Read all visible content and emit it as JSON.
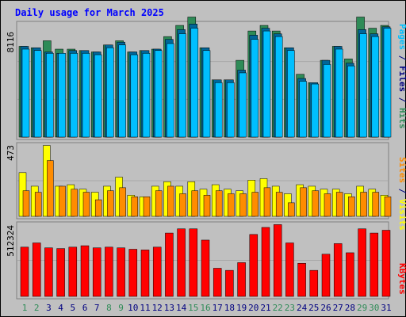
{
  "chart_data": {
    "type": "bar",
    "title": "Daily usage for March 2025",
    "days": [
      "1",
      "2",
      "3",
      "4",
      "5",
      "6",
      "7",
      "8",
      "9",
      "10",
      "11",
      "12",
      "13",
      "14",
      "15",
      "16",
      "17",
      "18",
      "19",
      "20",
      "21",
      "22",
      "23",
      "24",
      "25",
      "26",
      "27",
      "28",
      "29",
      "30",
      "31"
    ],
    "weekend_days": [
      "1",
      "2",
      "8",
      "9",
      "15",
      "16",
      "22",
      "23",
      "29",
      "30"
    ],
    "colors": {
      "title": "#0000ff",
      "background": "#c0c0c0",
      "pages": "#2e8b57",
      "files": "#00bfff",
      "hits": "#006699",
      "visits": "#ffff00",
      "sites": "#ff8c00",
      "kbytes": "#ff0000",
      "weekday_label": "#000080",
      "weekend_label": "#2e8b57"
    },
    "panel_top": {
      "ymax_label": "8116",
      "ymax": 8116,
      "legend": [
        {
          "text": "Pages",
          "color": "#00bfff"
        },
        {
          "text": " / ",
          "color": "#000080"
        },
        {
          "text": "Files",
          "color": "#000080"
        },
        {
          "text": " / ",
          "color": "#000080"
        },
        {
          "text": "Hits",
          "color": "#2e8b57"
        }
      ],
      "series": [
        {
          "name": "Hits",
          "values": [
            6500,
            6400,
            6900,
            6300,
            6300,
            6200,
            6100,
            6600,
            6900,
            6100,
            6200,
            6300,
            7200,
            8000,
            8600,
            6400,
            4100,
            4100,
            5500,
            7600,
            8000,
            7600,
            6400,
            4500,
            3900,
            5500,
            6500,
            5600,
            8600,
            7800,
            8000
          ]
        },
        {
          "name": "Files",
          "values": [
            6500,
            6400,
            6100,
            6000,
            6200,
            6200,
            6100,
            6600,
            6800,
            6100,
            6200,
            6300,
            7000,
            7700,
            8100,
            6400,
            4100,
            4100,
            4800,
            7300,
            7800,
            7400,
            6400,
            4200,
            3900,
            5500,
            6500,
            5300,
            7700,
            7400,
            7900
          ]
        },
        {
          "name": "Pages",
          "values": [
            6300,
            6200,
            6000,
            6000,
            6000,
            6000,
            5900,
            6400,
            6600,
            5900,
            6000,
            6200,
            6700,
            7400,
            7800,
            6200,
            3900,
            3900,
            4600,
            7000,
            7600,
            7200,
            6200,
            4000,
            3800,
            5200,
            6300,
            5100,
            7400,
            7200,
            7800
          ]
        }
      ]
    },
    "panel_mid": {
      "ymax_label": "473",
      "ymax": 473,
      "legend": [
        {
          "text": "Sites",
          "color": "#ff8c00"
        },
        {
          "text": " / ",
          "color": "#000080"
        },
        {
          "text": "Visits",
          "color": "#ffff00"
        }
      ],
      "series": [
        {
          "name": "Visits",
          "values": [
            290,
            200,
            470,
            200,
            210,
            180,
            160,
            200,
            260,
            140,
            130,
            200,
            230,
            200,
            230,
            180,
            210,
            180,
            170,
            240,
            250,
            200,
            150,
            210,
            200,
            180,
            180,
            150,
            200,
            180,
            140
          ]
        },
        {
          "name": "Sites",
          "values": [
            170,
            160,
            370,
            200,
            180,
            160,
            110,
            170,
            190,
            130,
            130,
            170,
            200,
            150,
            170,
            140,
            170,
            150,
            150,
            160,
            190,
            160,
            90,
            190,
            170,
            150,
            160,
            130,
            160,
            160,
            130
          ]
        }
      ]
    },
    "panel_bot": {
      "ymax_label": "512324",
      "ymax": 512324,
      "legend": [
        {
          "text": "KBytes",
          "color": "#ff0000"
        }
      ],
      "series": [
        {
          "name": "KBytes",
          "values": [
            350000,
            380000,
            345000,
            340000,
            350000,
            360000,
            345000,
            350000,
            345000,
            335000,
            330000,
            350000,
            450000,
            480000,
            480000,
            400000,
            200000,
            185000,
            240000,
            440000,
            490000,
            510000,
            380000,
            235000,
            185000,
            300000,
            375000,
            310000,
            480000,
            450000,
            470000
          ]
        }
      ]
    }
  }
}
